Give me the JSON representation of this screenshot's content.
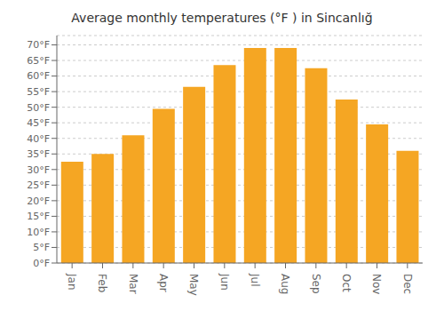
{
  "chart_data": {
    "type": "bar",
    "title": "Average monthly temperatures (°F ) in Sincanlığ",
    "categories": [
      "Jan",
      "Feb",
      "Mar",
      "Apr",
      "May",
      "Jun",
      "Jul",
      "Aug",
      "Sep",
      "Oct",
      "Nov",
      "Dec"
    ],
    "values": [
      32.5,
      35.0,
      41.0,
      49.5,
      56.5,
      63.5,
      69.0,
      69.0,
      62.5,
      52.5,
      44.5,
      36.0
    ],
    "color": "#F5A623",
    "ylim": [
      0,
      73
    ],
    "yticks": [
      {
        "value": 0,
        "label": "0°F"
      },
      {
        "value": 5,
        "label": "5°F"
      },
      {
        "value": 10,
        "label": "10°F"
      },
      {
        "value": 15,
        "label": "15°F"
      },
      {
        "value": 20,
        "label": "20°F"
      },
      {
        "value": 25,
        "label": "25°F"
      },
      {
        "value": 30,
        "label": "30°F"
      },
      {
        "value": 35,
        "label": "35°F"
      },
      {
        "value": 40,
        "label": "40°F"
      },
      {
        "value": 45,
        "label": "45°F"
      },
      {
        "value": 50,
        "label": "50°F"
      },
      {
        "value": 55,
        "label": "55°F"
      },
      {
        "value": 60,
        "label": "60°F"
      },
      {
        "value": 65,
        "label": "65°F"
      },
      {
        "value": 70,
        "label": "70°F"
      }
    ],
    "grid": true
  }
}
